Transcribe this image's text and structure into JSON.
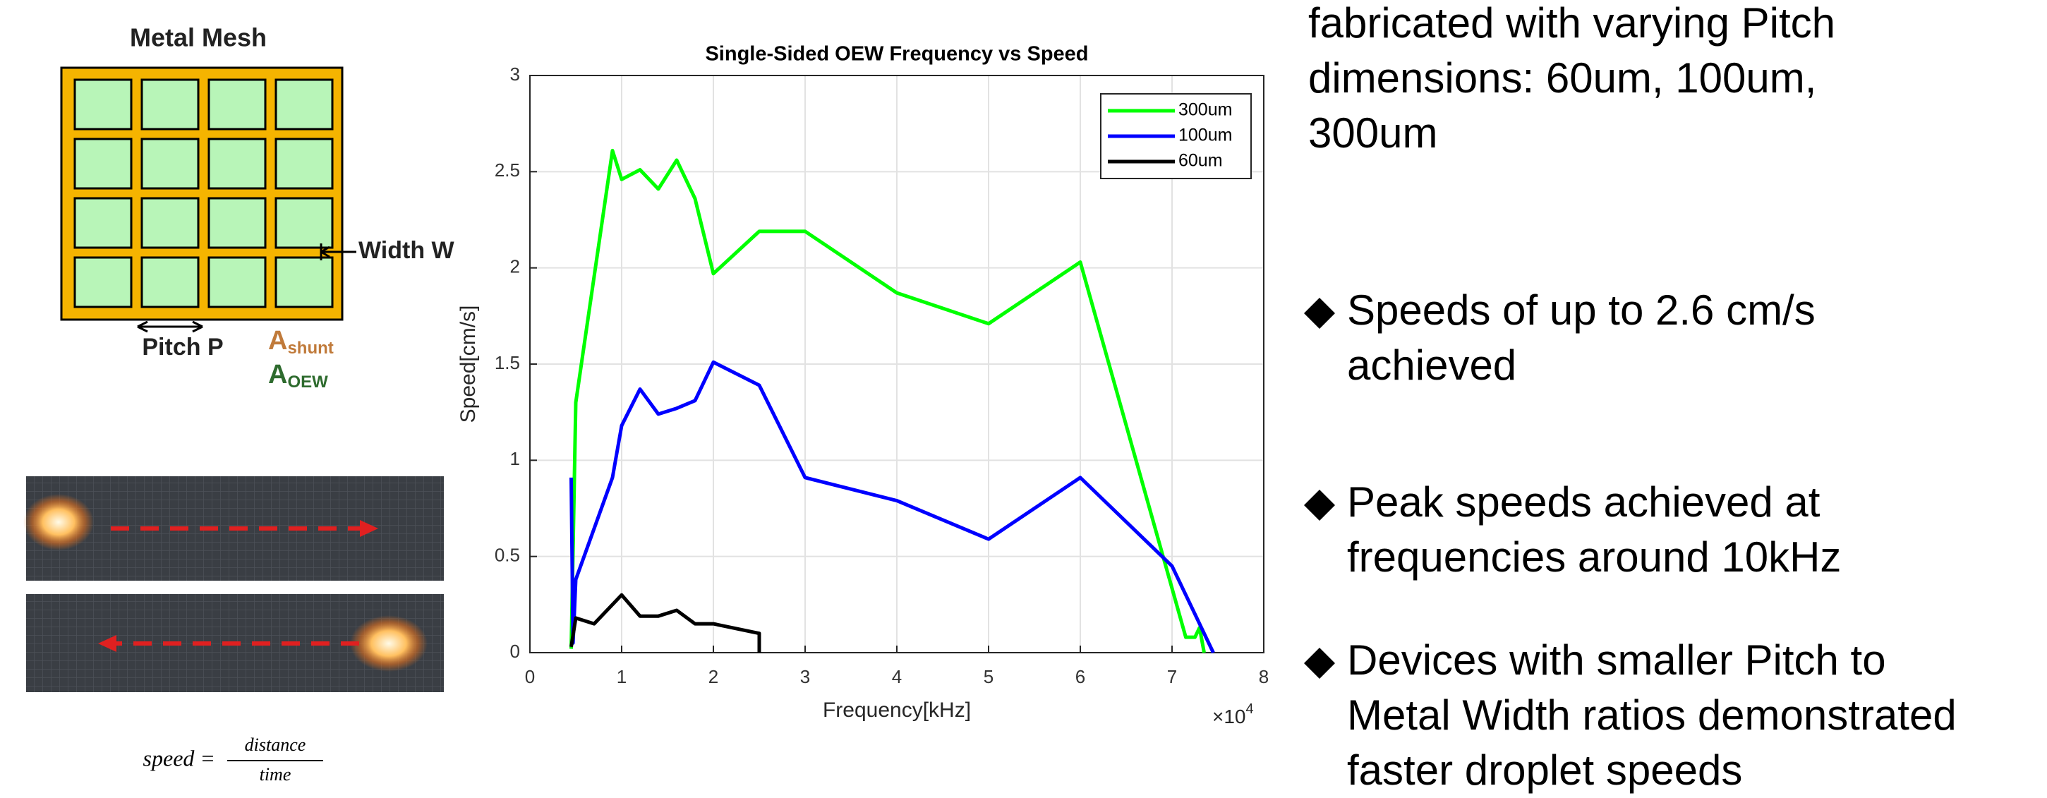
{
  "diagram": {
    "title": "Metal Mesh",
    "width_label": "Width W",
    "pitch_label": "Pitch P",
    "area_shunt": {
      "base": "A",
      "sub": "shunt"
    },
    "area_oew": {
      "base": "A",
      "sub": "OEW"
    }
  },
  "formula": {
    "lhs": "speed =",
    "numerator": "distance",
    "denominator": "time"
  },
  "bullets": [
    {
      "lines": [
        "fabricated with varying Pitch",
        "dimensions: 60um, 100um,",
        "300um"
      ]
    },
    {
      "lines": [
        "Speeds of up to 2.6 cm/s",
        "achieved"
      ]
    },
    {
      "lines": [
        "Peak speeds achieved at",
        "frequencies around 10kHz"
      ]
    },
    {
      "lines": [
        "Devices with smaller Pitch to",
        "Metal Width ratios demonstrated",
        "faster droplet speeds"
      ]
    }
  ],
  "chart_data": {
    "type": "line",
    "title": "Single-Sided OEW Frequency vs Speed",
    "x_label": "Frequency[kHz]",
    "y_label": "Speed[cm/s]",
    "x_multiplier": {
      "base": "×10",
      "exponent": "4"
    },
    "xlim": [
      0,
      8
    ],
    "xticks": [
      0,
      1,
      2,
      3,
      4,
      5,
      6,
      7,
      8
    ],
    "ylim": [
      0,
      3
    ],
    "yticks": [
      0,
      0.5,
      1,
      1.5,
      2,
      2.5,
      3
    ],
    "grid": true,
    "legend": "upper right",
    "series": [
      {
        "name": "300um",
        "color": "#00ff00",
        "x": [
          0.45,
          0.5,
          0.9,
          1.0,
          1.2,
          1.4,
          1.6,
          1.8,
          2.0,
          2.5,
          3.0,
          4.0,
          5.0,
          6.0,
          7.15,
          7.25,
          7.3,
          7.35
        ],
        "values": [
          0.02,
          1.3,
          2.61,
          2.46,
          2.51,
          2.41,
          2.56,
          2.36,
          1.97,
          2.19,
          2.19,
          1.87,
          1.71,
          2.03,
          0.08,
          0.08,
          0.13,
          0
        ]
      },
      {
        "name": "100um",
        "color": "#0000ff",
        "x": [
          0.45,
          0.47,
          0.5,
          0.9,
          1.0,
          1.2,
          1.4,
          1.6,
          1.8,
          2.0,
          2.5,
          3.0,
          4.0,
          5.0,
          6.0,
          7.0,
          7.3,
          7.45
        ],
        "values": [
          0.91,
          0.05,
          0.38,
          0.91,
          1.18,
          1.37,
          1.24,
          1.27,
          1.31,
          1.51,
          1.39,
          0.91,
          0.79,
          0.59,
          0.91,
          0.45,
          0.15,
          0
        ]
      },
      {
        "name": "60um",
        "color": "#000000",
        "x": [
          0.45,
          0.5,
          0.7,
          1.0,
          1.2,
          1.4,
          1.6,
          1.8,
          2.0,
          2.5,
          2.5
        ],
        "values": [
          0.03,
          0.18,
          0.15,
          0.3,
          0.19,
          0.19,
          0.22,
          0.15,
          0.15,
          0.1,
          0
        ]
      }
    ]
  }
}
